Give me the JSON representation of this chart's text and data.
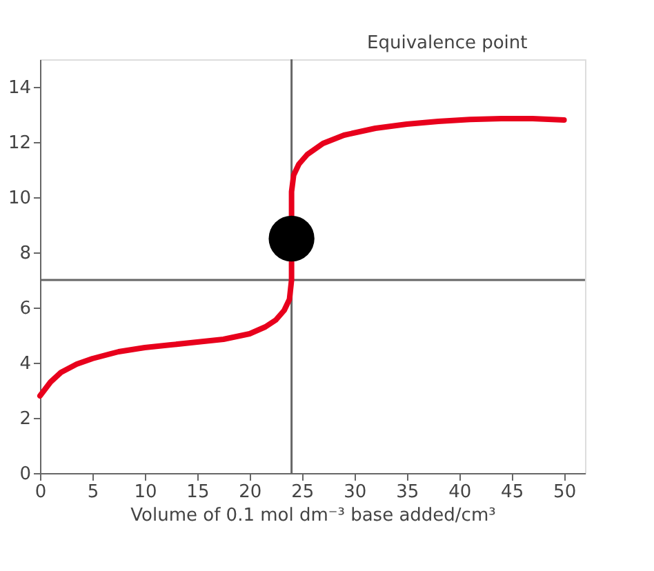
{
  "chart_data": {
    "type": "line",
    "xlabel": "Volume of 0.1 mol dm⁻³ base added/cm³",
    "xlim": [
      0,
      52
    ],
    "xticks": [
      0,
      5,
      10,
      15,
      20,
      25,
      30,
      35,
      40,
      45,
      50
    ],
    "ylim": [
      0,
      15
    ],
    "yticks": [
      0,
      2,
      4,
      6,
      8,
      10,
      12,
      14
    ],
    "grid": false,
    "marker": "none",
    "line_style": "solid",
    "series": [
      {
        "color": "#e8001c",
        "x": [
          0,
          1,
          2,
          3.5,
          5,
          7.5,
          10,
          12.5,
          15,
          17.5,
          20,
          21.5,
          22.5,
          23.3,
          23.8,
          24,
          24,
          24.2,
          24.7,
          25.5,
          27,
          29,
          32,
          35,
          38,
          41,
          44,
          47,
          50
        ],
        "values": [
          2.8,
          3.3,
          3.65,
          3.95,
          4.15,
          4.4,
          4.55,
          4.65,
          4.75,
          4.85,
          5.05,
          5.3,
          5.55,
          5.9,
          6.3,
          7,
          10.2,
          10.8,
          11.2,
          11.55,
          11.95,
          12.25,
          12.5,
          12.65,
          12.75,
          12.82,
          12.85,
          12.85,
          12.8
        ]
      },
      {
        "type": "scatter",
        "color": "#000000",
        "marker": "circle",
        "x": [
          24
        ],
        "values": [
          8.5
        ]
      }
    ],
    "ref_lines": [
      {
        "axis": "y",
        "value": 7,
        "color": "#666666"
      },
      {
        "axis": "x",
        "value": 24,
        "color": "#666666"
      }
    ],
    "annotations": [
      "Equivalence point"
    ]
  }
}
